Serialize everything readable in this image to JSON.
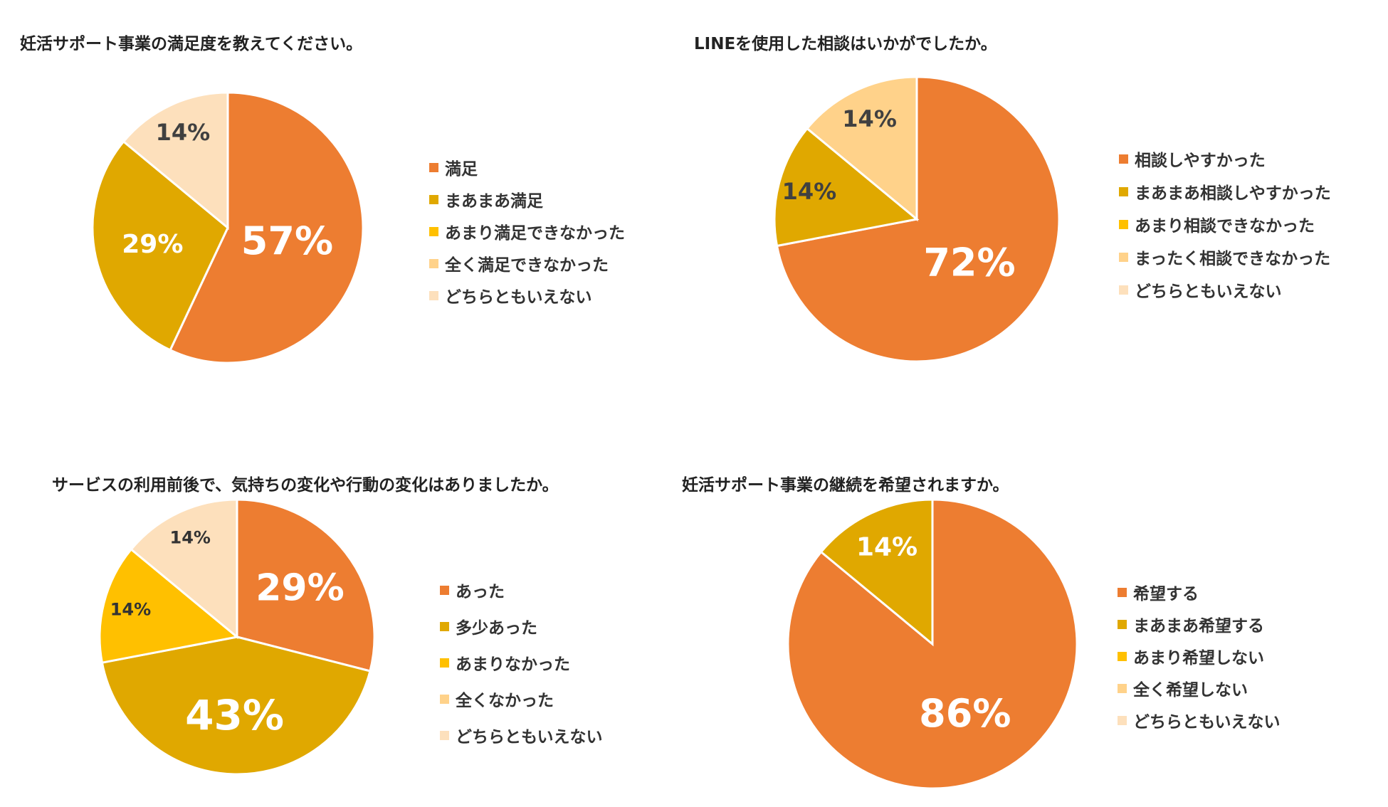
{
  "colors": {
    "orange": "#ED7D31",
    "mustard": "#E0A800",
    "yellow": "#FFC000",
    "light_orange": "#FFD28A",
    "peach": "#FDE0BC"
  },
  "chart_data": [
    {
      "type": "pie",
      "title": "妊活サポート事業の満足度を教えてください。",
      "categories": [
        "満足",
        "まあまあ満足",
        "あまり満足できなかった",
        "全く満足できなかった",
        "どちらともいえない"
      ],
      "values": [
        57,
        29,
        0,
        0,
        14
      ],
      "data_labels": [
        "57%",
        "29%",
        "",
        "",
        "14%"
      ],
      "colors": [
        "#ED7D31",
        "#E0A800",
        "#FFC000",
        "#FFD28A",
        "#FDE0BC"
      ],
      "legend_position": "right"
    },
    {
      "type": "pie",
      "title": "LINEを使用した相談はいかがでしたか。",
      "categories": [
        "相談しやすかった",
        "まあまあ相談しやすかった",
        "あまり相談できなかった",
        "まったく相談できなかった",
        "どちらともいえない"
      ],
      "values": [
        72,
        14,
        0,
        14,
        0
      ],
      "data_labels": [
        "72%",
        "14%",
        "",
        "14%",
        ""
      ],
      "colors": [
        "#ED7D31",
        "#E0A800",
        "#FFC000",
        "#FFD28A",
        "#FDE0BC"
      ],
      "legend_position": "right"
    },
    {
      "type": "pie",
      "title": "サービスの利用前後で、気持ちの変化や行動の変化はありましたか。",
      "categories": [
        "あった",
        "多少あった",
        "あまりなかった",
        "全くなかった",
        "どちらともいえない"
      ],
      "values": [
        29,
        43,
        14,
        0,
        14
      ],
      "data_labels": [
        "29%",
        "43%",
        "14%",
        "",
        "14%"
      ],
      "colors": [
        "#ED7D31",
        "#E0A800",
        "#FFC000",
        "#FFD28A",
        "#FDE0BC"
      ],
      "legend_position": "right"
    },
    {
      "type": "pie",
      "title": "妊活サポート事業の継続を希望されますか。",
      "categories": [
        "希望する",
        "まあまあ希望する",
        "あまり希望しない",
        "全く希望しない",
        "どちらともいえない"
      ],
      "values": [
        86,
        14,
        0,
        0,
        0
      ],
      "data_labels": [
        "86%",
        "14%",
        "",
        "",
        ""
      ],
      "colors": [
        "#ED7D31",
        "#E0A800",
        "#FFC000",
        "#FFD28A",
        "#FDE0BC"
      ],
      "legend_position": "right"
    }
  ]
}
